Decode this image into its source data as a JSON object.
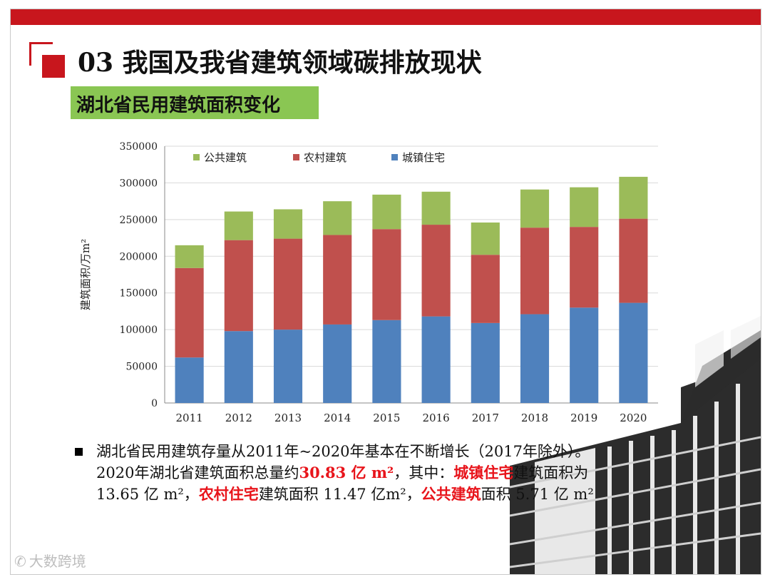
{
  "slide": {
    "title": "03 我国及我省建筑领域碳排放现状",
    "subtitle": "湖北省民用建筑面积变化"
  },
  "chart_data": {
    "type": "bar",
    "stacked": true,
    "title": "",
    "xlabel": "",
    "ylabel": "建筑面积/万m²",
    "ylim": [
      0,
      350000
    ],
    "yticks": [
      0,
      50000,
      100000,
      150000,
      200000,
      250000,
      300000,
      350000
    ],
    "grid": true,
    "legend_position": "top",
    "categories": [
      "2011",
      "2012",
      "2013",
      "2014",
      "2015",
      "2016",
      "2017",
      "2018",
      "2019",
      "2020"
    ],
    "series": [
      {
        "name": "城镇住宅",
        "color": "#4f81bd",
        "values": [
          62000,
          98000,
          100000,
          107000,
          113000,
          118000,
          109000,
          121000,
          130000,
          136500
        ]
      },
      {
        "name": "农村建筑",
        "color": "#c0504d",
        "values": [
          122000,
          124000,
          124000,
          122000,
          124000,
          125000,
          93000,
          118000,
          110000,
          114700
        ]
      },
      {
        "name": "公共建筑",
        "color": "#9bbb59",
        "values": [
          31000,
          39000,
          40000,
          46000,
          47000,
          45000,
          44000,
          52000,
          54000,
          57100
        ]
      }
    ],
    "legend_order": [
      "公共建筑",
      "农村建筑",
      "城镇住宅"
    ]
  },
  "bullet": {
    "line1": "湖北省民用建筑存量从2011年~2020年基本在不断增长（2017年除外）。",
    "line2_a": "2020年湖北省建筑面积总量约",
    "line2_total": "30.83 亿 m²",
    "line2_b": "，其中：",
    "line2_urban": "城镇住宅",
    "line2_c": "建筑面积为",
    "line3_a": "13.65 亿 m²，",
    "line3_rural": "农村住宅",
    "line3_b": "建筑面积 11.47 亿m²，",
    "line3_public": "公共建筑",
    "line3_c": "面积 5.71 亿 m²"
  },
  "watermark": {
    "icon": "weixin-icon",
    "text": "大数跨境"
  }
}
